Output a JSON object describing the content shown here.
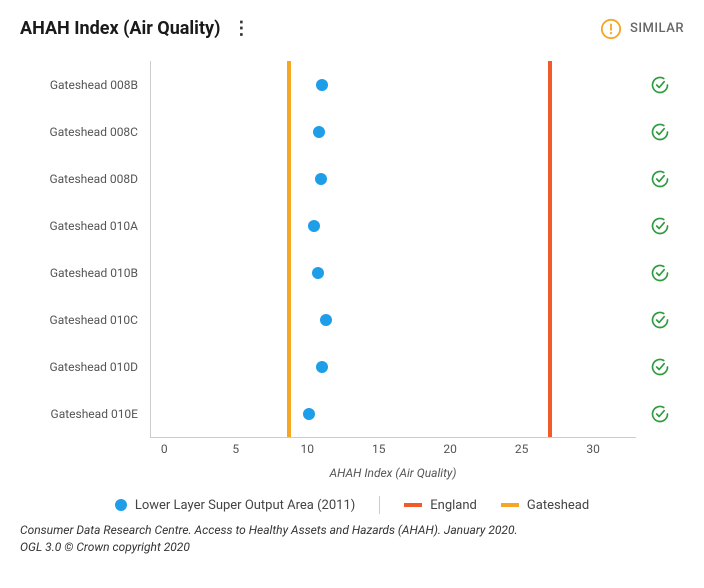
{
  "title": "AHAH Index (Air Quality)",
  "similar_label": "SIMILAR",
  "rows": [
    {
      "label": "Gateshead 008B",
      "value": 11.0
    },
    {
      "label": "Gateshead 008C",
      "value": 10.8
    },
    {
      "label": "Gateshead 008D",
      "value": 10.9
    },
    {
      "label": "Gateshead 010A",
      "value": 10.4
    },
    {
      "label": "Gateshead 010B",
      "value": 10.7
    },
    {
      "label": "Gateshead 010C",
      "value": 11.3
    },
    {
      "label": "Gateshead 010D",
      "value": 11.0
    },
    {
      "label": "Gateshead 010E",
      "value": 10.1
    }
  ],
  "x_axis": {
    "label": "AHAH Index (Air Quality)",
    "min": -1,
    "max": 33,
    "ticks": [
      0,
      5,
      10,
      15,
      20,
      25,
      30
    ]
  },
  "reference_lines": [
    {
      "name": "Gateshead",
      "value": 8.7,
      "color": "#f5a623"
    },
    {
      "name": "England",
      "value": 27.0,
      "color": "#f15a29"
    }
  ],
  "colors": {
    "dot": "#1e9ee8",
    "check": "#2e9b3f",
    "similar_icon": "#f5a623",
    "grid": "#cccccc",
    "background": "#ffffff"
  },
  "legend": {
    "series_label": "Lower Layer Super Output Area (2011)",
    "england_label": "England",
    "gateshead_label": "Gateshead"
  },
  "footer_line1": "Consumer Data Research Centre. Access to Healthy Assets and Hazards (AHAH). January 2020.",
  "footer_line2": "OGL 3.0 © Crown copyright 2020"
}
